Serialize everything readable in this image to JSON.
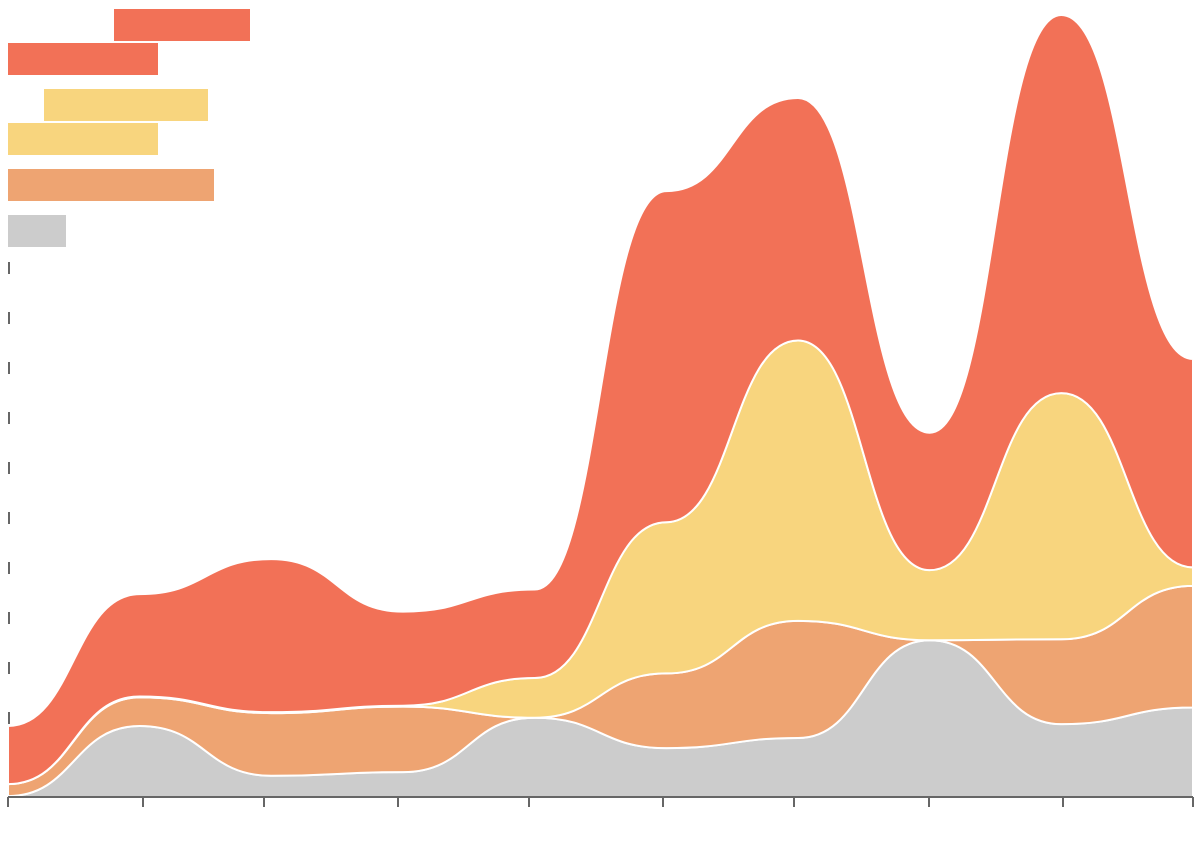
{
  "chart_data": {
    "type": "area",
    "subtype": "streamgraph",
    "title": "",
    "xlabel": "",
    "ylabel": "",
    "x": [
      0,
      1,
      2,
      3,
      4,
      5,
      6,
      7,
      8,
      9
    ],
    "grid": false,
    "legend_placement": "top-left",
    "layer_order": [
      "gray",
      "light-orange",
      "yellow",
      "orange"
    ],
    "series": [
      {
        "key": "gray",
        "color": "#cccccc",
        "values": [
          1,
          77,
          23,
          27,
          86,
          53,
          64,
          170,
          79,
          97
        ]
      },
      {
        "key": "light-orange",
        "color": "#eea472",
        "values": [
          13,
          31,
          68,
          71,
          0,
          81,
          127,
          0,
          92,
          132
        ]
      },
      {
        "key": "yellow",
        "color": "#f8d57e",
        "values": [
          0,
          1,
          1,
          1,
          43,
          164,
          304,
          76,
          267,
          20
        ]
      },
      {
        "key": "orange",
        "color": "#f27157",
        "values": [
          63,
          111,
          166,
          102,
          96,
          359,
          263,
          149,
          410,
          226
        ]
      }
    ],
    "legend_entries": [
      {
        "color": "#f27157"
      },
      {
        "color": "#f27157"
      },
      {
        "color": "#f8d57e"
      },
      {
        "color": "#f8d57e"
      },
      {
        "color": "#eea472"
      },
      {
        "color": "#cccccc"
      }
    ]
  }
}
